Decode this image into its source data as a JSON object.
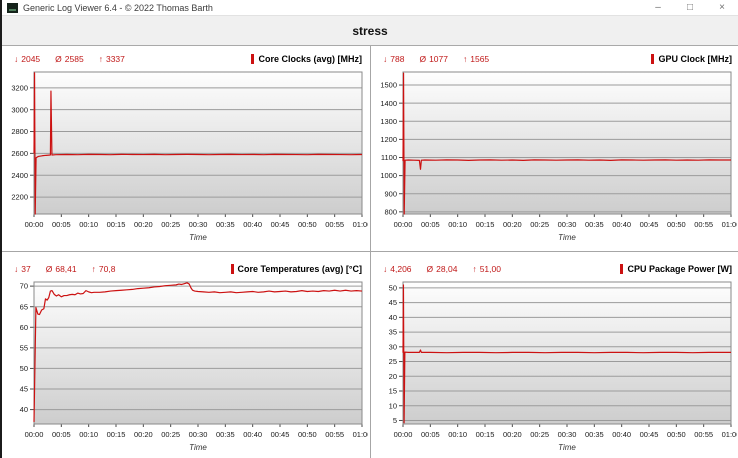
{
  "window": {
    "title": "Generic Log Viewer 6.4 - © 2022 Thomas Barth",
    "controls": {
      "minimize": "–",
      "maximize": "□",
      "close": "×"
    }
  },
  "header": {
    "title": "stress"
  },
  "icons": {
    "min": "↓",
    "avg": "Ø",
    "max": "↑"
  },
  "colors": {
    "line": "#cc1111",
    "stats_text": "#c01818",
    "grid_line": "#9b9b9b",
    "plot_border": "#8a8a8a"
  },
  "time_axis": {
    "label": "Time",
    "range_minutes": [
      0,
      60
    ],
    "ticks": [
      "00:00",
      "00:05",
      "00:10",
      "00:15",
      "00:20",
      "00:25",
      "00:30",
      "00:35",
      "00:40",
      "00:45",
      "00:50",
      "00:55",
      "01:00"
    ]
  },
  "chart_data": [
    {
      "id": "core-clocks",
      "type": "line",
      "title": "Core Clocks (avg) [MHz]",
      "stats": {
        "min": "2045",
        "avg": "2585",
        "max": "3337"
      },
      "xlabel": "Time",
      "ylim": [
        2045,
        3345
      ],
      "y_ticks": [
        2200,
        2400,
        2600,
        2800,
        3000,
        3200
      ],
      "color": "#cc1111",
      "series": [
        {
          "name": "Core Clocks (avg)",
          "points": [
            [
              0,
              2600
            ],
            [
              0.1,
              3337
            ],
            [
              0.22,
              2045
            ],
            [
              0.38,
              2560
            ],
            [
              0.8,
              2572
            ],
            [
              1.5,
              2578
            ],
            [
              2.2,
              2582
            ],
            [
              3,
              2585
            ],
            [
              3.1,
              3170
            ],
            [
              3.28,
              2585
            ],
            [
              4,
              2588
            ],
            [
              6,
              2590
            ],
            [
              8,
              2588
            ],
            [
              10,
              2591
            ],
            [
              12,
              2590
            ],
            [
              14,
              2588
            ],
            [
              16,
              2591
            ],
            [
              18,
              2590
            ],
            [
              20,
              2589
            ],
            [
              22,
              2591
            ],
            [
              24,
              2588
            ],
            [
              26,
              2590
            ],
            [
              28,
              2591
            ],
            [
              30,
              2590
            ],
            [
              32,
              2588
            ],
            [
              34,
              2590
            ],
            [
              36,
              2591
            ],
            [
              38,
              2589
            ],
            [
              40,
              2590
            ],
            [
              42,
              2588
            ],
            [
              44,
              2591
            ],
            [
              46,
              2590
            ],
            [
              48,
              2589
            ],
            [
              50,
              2588
            ],
            [
              52,
              2591
            ],
            [
              54,
              2590
            ],
            [
              56,
              2589
            ],
            [
              58,
              2588
            ],
            [
              60,
              2590
            ]
          ]
        }
      ]
    },
    {
      "id": "gpu-clock",
      "type": "line",
      "title": "GPU Clock [MHz]",
      "stats": {
        "min": "788",
        "avg": "1077",
        "max": "1565"
      },
      "xlabel": "Time",
      "ylim": [
        788,
        1572
      ],
      "y_ticks": [
        800,
        900,
        1000,
        1100,
        1200,
        1300,
        1400,
        1500
      ],
      "color": "#cc1111",
      "series": [
        {
          "name": "GPU Clock",
          "points": [
            [
              0,
              1080
            ],
            [
              0.1,
              1565
            ],
            [
              0.22,
              788
            ],
            [
              0.38,
              1085
            ],
            [
              1,
              1086
            ],
            [
              2,
              1085
            ],
            [
              3,
              1084
            ],
            [
              3.2,
              1035
            ],
            [
              3.36,
              1085
            ],
            [
              4,
              1086
            ],
            [
              6,
              1085
            ],
            [
              8,
              1087
            ],
            [
              10,
              1086
            ],
            [
              12,
              1084
            ],
            [
              14,
              1086
            ],
            [
              16,
              1087
            ],
            [
              18,
              1085
            ],
            [
              20,
              1086
            ],
            [
              22,
              1084
            ],
            [
              24,
              1087
            ],
            [
              26,
              1086
            ],
            [
              28,
              1085
            ],
            [
              30,
              1086
            ],
            [
              32,
              1087
            ],
            [
              34,
              1085
            ],
            [
              36,
              1086
            ],
            [
              38,
              1084
            ],
            [
              40,
              1087
            ],
            [
              42,
              1086
            ],
            [
              44,
              1085
            ],
            [
              46,
              1086
            ],
            [
              48,
              1087
            ],
            [
              50,
              1085
            ],
            [
              52,
              1086
            ],
            [
              54,
              1085
            ],
            [
              56,
              1087
            ],
            [
              58,
              1086
            ],
            [
              60,
              1086
            ]
          ]
        }
      ]
    },
    {
      "id": "core-temperatures",
      "type": "line",
      "title": "Core Temperatures (avg) [°C]",
      "stats": {
        "min": "37",
        "avg": "68,41",
        "max": "70,8"
      },
      "xlabel": "Time",
      "ylim": [
        36.5,
        71
      ],
      "y_ticks": [
        40,
        45,
        50,
        55,
        60,
        65,
        70
      ],
      "color": "#cc1111",
      "series": [
        {
          "name": "Core Temperatures (avg)",
          "points": [
            [
              0,
              37
            ],
            [
              0.35,
              64.8
            ],
            [
              0.7,
              63.2
            ],
            [
              1,
              63.1
            ],
            [
              1.4,
              64.2
            ],
            [
              1.8,
              64.5
            ],
            [
              2.1,
              66.9
            ],
            [
              2.4,
              66.6
            ],
            [
              2.7,
              67.2
            ],
            [
              3,
              68.8
            ],
            [
              3.3,
              68.9
            ],
            [
              3.7,
              68
            ],
            [
              4.1,
              67.6
            ],
            [
              4.5,
              67.9
            ],
            [
              5,
              67.4
            ],
            [
              5.5,
              67.7
            ],
            [
              6,
              67.7
            ],
            [
              6.5,
              67.9
            ],
            [
              7,
              68
            ],
            [
              7.5,
              67.9
            ],
            [
              8,
              68.3
            ],
            [
              8.5,
              68.1
            ],
            [
              9,
              68.2
            ],
            [
              9.5,
              68.9
            ],
            [
              10,
              68.6
            ],
            [
              10.5,
              68.4
            ],
            [
              11,
              68.5
            ],
            [
              12,
              68.5
            ],
            [
              13,
              68.6
            ],
            [
              14,
              68.8
            ],
            [
              15,
              68.9
            ],
            [
              16,
              69
            ],
            [
              17,
              69.1
            ],
            [
              18,
              69.2
            ],
            [
              19,
              69.4
            ],
            [
              20,
              69.5
            ],
            [
              21,
              69.6
            ],
            [
              22,
              69.8
            ],
            [
              23,
              69.9
            ],
            [
              24,
              70.1
            ],
            [
              25,
              70.2
            ],
            [
              26,
              70.3
            ],
            [
              26.5,
              70.5
            ],
            [
              27,
              70.4
            ],
            [
              27.5,
              70.6
            ],
            [
              28,
              70.8
            ],
            [
              28.4,
              70.5
            ],
            [
              28.7,
              69.6
            ],
            [
              29,
              69
            ],
            [
              29.4,
              68.8
            ],
            [
              30,
              68.7
            ],
            [
              31,
              68.6
            ],
            [
              32,
              68.5
            ],
            [
              33,
              68.6
            ],
            [
              34,
              68.4
            ],
            [
              35,
              68.5
            ],
            [
              36,
              68.6
            ],
            [
              37,
              68.4
            ],
            [
              38,
              68.5
            ],
            [
              39,
              68.6
            ],
            [
              40,
              68.7
            ],
            [
              41,
              68.5
            ],
            [
              42,
              68.6
            ],
            [
              43,
              68.8
            ],
            [
              44,
              68.6
            ],
            [
              45,
              68.7
            ],
            [
              46,
              68.8
            ],
            [
              47,
              68.6
            ],
            [
              48,
              68.7
            ],
            [
              49,
              68.9
            ],
            [
              50,
              68.7
            ],
            [
              51,
              68.8
            ],
            [
              52,
              68.7
            ],
            [
              53,
              68.9
            ],
            [
              54,
              68.8
            ],
            [
              55,
              69
            ],
            [
              56,
              68.8
            ],
            [
              57,
              69
            ],
            [
              58,
              68.8
            ],
            [
              59,
              68.9
            ],
            [
              60,
              68.8
            ]
          ]
        }
      ]
    },
    {
      "id": "cpu-package-power",
      "type": "line",
      "title": "CPU Package Power [W]",
      "stats": {
        "min": "4,206",
        "avg": "28,04",
        "max": "51,00"
      },
      "xlabel": "Time",
      "ylim": [
        3.8,
        52
      ],
      "y_ticks": [
        5,
        10,
        15,
        20,
        25,
        30,
        35,
        40,
        45,
        50
      ],
      "color": "#cc1111",
      "series": [
        {
          "name": "CPU Package Power",
          "points": [
            [
              0,
              28
            ],
            [
              0.08,
              51
            ],
            [
              0.2,
              4.21
            ],
            [
              0.34,
              28.2
            ],
            [
              1,
              28.1
            ],
            [
              2,
              28.1
            ],
            [
              3,
              28.1
            ],
            [
              3.2,
              28.9
            ],
            [
              3.36,
              28.1
            ],
            [
              5,
              28.1
            ],
            [
              8,
              28
            ],
            [
              11,
              28.1
            ],
            [
              14,
              28.1
            ],
            [
              17,
              28
            ],
            [
              20,
              28.1
            ],
            [
              23,
              28.1
            ],
            [
              26,
              28
            ],
            [
              29,
              28.1
            ],
            [
              32,
              28.1
            ],
            [
              35,
              28
            ],
            [
              38,
              28.1
            ],
            [
              41,
              28.1
            ],
            [
              44,
              28
            ],
            [
              47,
              28.1
            ],
            [
              50,
              28.1
            ],
            [
              53,
              28
            ],
            [
              56,
              28.1
            ],
            [
              58,
              28.1
            ],
            [
              60,
              28.1
            ]
          ]
        }
      ]
    }
  ]
}
